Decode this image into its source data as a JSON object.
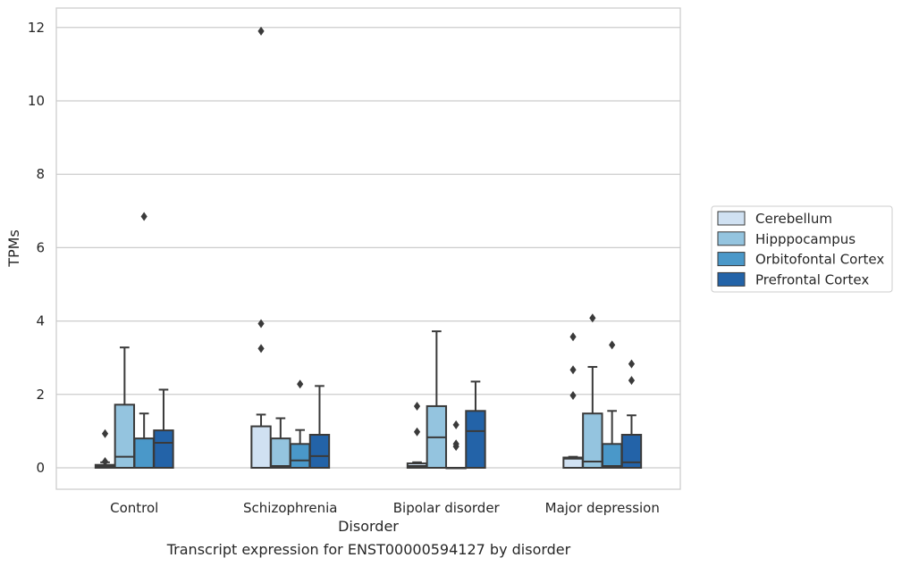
{
  "caption": "Transcript expression for ENST00000594127 by disorder",
  "chart_data": {
    "type": "boxplot",
    "xlabel": "Disorder",
    "ylabel": "TPMs",
    "ylim": [
      -0.55,
      12.5
    ],
    "yticks": [
      0,
      2,
      4,
      6,
      8,
      10,
      12
    ],
    "grid": "horizontal",
    "legend_position": "right",
    "categories": [
      "Control",
      "Schizophrenia",
      "Bipolar disorder",
      "Major depression"
    ],
    "series": [
      {
        "name": "Cerebellum",
        "color": "#d0e1f2",
        "boxes": [
          {
            "q1": 0.0,
            "median": 0.05,
            "q3": 0.08,
            "whisker_low": 0.0,
            "whisker_high": 0.15,
            "outliers": [
              0.93,
              0.17
            ]
          },
          {
            "q1": 0.0,
            "median": 0.0,
            "q3": 1.13,
            "whisker_low": 0.0,
            "whisker_high": 1.45,
            "outliers": [
              11.9,
              3.93,
              3.25
            ]
          },
          {
            "q1": 0.0,
            "median": 0.05,
            "q3": 0.12,
            "whisker_low": 0.0,
            "whisker_high": 0.15,
            "outliers": [
              1.68,
              0.98
            ]
          },
          {
            "q1": 0.0,
            "median": 0.25,
            "q3": 0.28,
            "whisker_low": 0.0,
            "whisker_high": 0.3,
            "outliers": [
              3.57,
              2.67,
              1.97
            ]
          }
        ]
      },
      {
        "name": "Hipppocampus",
        "color": "#94c4df",
        "boxes": [
          {
            "q1": 0.0,
            "median": 0.3,
            "q3": 1.72,
            "whisker_low": 0.0,
            "whisker_high": 3.28,
            "outliers": []
          },
          {
            "q1": 0.0,
            "median": 0.05,
            "q3": 0.8,
            "whisker_low": 0.0,
            "whisker_high": 1.35,
            "outliers": []
          },
          {
            "q1": 0.0,
            "median": 0.83,
            "q3": 1.68,
            "whisker_low": 0.0,
            "whisker_high": 3.72,
            "outliers": []
          },
          {
            "q1": 0.0,
            "median": 0.17,
            "q3": 1.48,
            "whisker_low": 0.0,
            "whisker_high": 2.75,
            "outliers": [
              4.08
            ]
          }
        ]
      },
      {
        "name": "Orbitofontal Cortex",
        "color": "#4a98c9",
        "boxes": [
          {
            "q1": 0.0,
            "median": 0.0,
            "q3": 0.8,
            "whisker_low": 0.0,
            "whisker_high": 1.48,
            "outliers": [
              6.85
            ]
          },
          {
            "q1": 0.0,
            "median": 0.2,
            "q3": 0.65,
            "whisker_low": 0.0,
            "whisker_high": 1.03,
            "outliers": [
              2.28
            ]
          },
          {
            "q1": 0.0,
            "median": 0.0,
            "q3": 0.0,
            "whisker_low": 0.0,
            "whisker_high": 0.0,
            "outliers": [
              1.17,
              0.65,
              0.58
            ]
          },
          {
            "q1": 0.0,
            "median": 0.05,
            "q3": 0.65,
            "whisker_low": 0.0,
            "whisker_high": 1.55,
            "outliers": [
              3.35
            ]
          }
        ]
      },
      {
        "name": "Prefrontal Cortex",
        "color": "#2363a8",
        "boxes": [
          {
            "q1": 0.0,
            "median": 0.68,
            "q3": 1.02,
            "whisker_low": 0.0,
            "whisker_high": 2.13,
            "outliers": []
          },
          {
            "q1": 0.0,
            "median": 0.32,
            "q3": 0.9,
            "whisker_low": 0.0,
            "whisker_high": 2.23,
            "outliers": []
          },
          {
            "q1": 0.0,
            "median": 1.0,
            "q3": 1.55,
            "whisker_low": 0.0,
            "whisker_high": 2.35,
            "outliers": []
          },
          {
            "q1": 0.0,
            "median": 0.15,
            "q3": 0.9,
            "whisker_low": 0.0,
            "whisker_high": 1.43,
            "outliers": [
              2.83,
              2.38
            ]
          }
        ]
      }
    ]
  }
}
